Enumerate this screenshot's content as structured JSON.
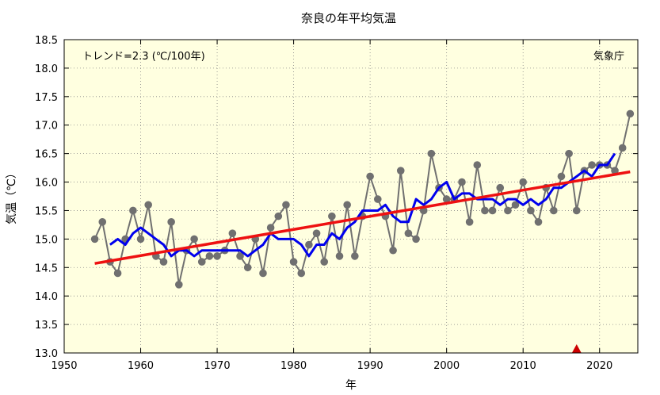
{
  "chart_data": {
    "type": "line",
    "title": "奈良の年平均気温",
    "xlabel": "年",
    "ylabel": "気温（℃）",
    "xlim": [
      1950,
      2025
    ],
    "ylim": [
      13.0,
      18.5
    ],
    "x_ticks": [
      1950,
      1960,
      1970,
      1980,
      1990,
      2000,
      2010,
      2020
    ],
    "y_ticks": [
      13.0,
      13.5,
      14.0,
      14.5,
      15.0,
      15.5,
      16.0,
      16.5,
      17.0,
      17.5,
      18.0,
      18.5
    ],
    "grid": true,
    "annotations": {
      "trend_text": "トレンド=2.3 (℃/100年)",
      "source_text": "気象庁"
    },
    "colors": {
      "background": "#ffffe0",
      "annual": "#707070",
      "moving_average": "#0000ee",
      "trend": "#ee1111",
      "marker": "#cc0000"
    },
    "series": [
      {
        "name": "",
        "kind": "annual",
        "x": [
          1954,
          1955,
          1956,
          1957,
          1958,
          1959,
          1960,
          1961,
          1962,
          1963,
          1964,
          1965,
          1966,
          1967,
          1968,
          1969,
          1970,
          1971,
          1972,
          1973,
          1974,
          1975,
          1976,
          1977,
          1978,
          1979,
          1980,
          1981,
          1982,
          1983,
          1984,
          1985,
          1986,
          1987,
          1988,
          1989,
          1990,
          1991,
          1992,
          1993,
          1994,
          1995,
          1996,
          1997,
          1998,
          1999,
          2000,
          2001,
          2002,
          2003,
          2004,
          2005,
          2006,
          2007,
          2008,
          2009,
          2010,
          2011,
          2012,
          2013,
          2014,
          2015,
          2016,
          2017,
          2018,
          2019,
          2020,
          2021,
          2022,
          2023,
          2024
        ],
        "values": [
          15.0,
          15.3,
          14.6,
          14.4,
          15.0,
          15.5,
          15.0,
          15.6,
          14.7,
          14.6,
          15.3,
          14.2,
          14.8,
          15.0,
          14.6,
          14.7,
          14.7,
          14.8,
          15.1,
          14.7,
          14.5,
          15.0,
          14.4,
          15.2,
          15.4,
          15.6,
          14.6,
          14.4,
          14.9,
          15.1,
          14.6,
          15.4,
          14.7,
          15.6,
          14.7,
          15.4,
          16.1,
          15.7,
          15.4,
          14.8,
          16.2,
          15.1,
          15.0,
          15.5,
          16.5,
          15.9,
          15.7,
          15.7,
          16.0,
          15.3,
          16.3,
          15.5,
          15.5,
          15.9,
          15.5,
          15.6,
          16.0,
          15.5,
          15.3,
          15.9,
          15.5,
          16.1,
          16.5,
          15.5,
          16.2,
          16.3,
          16.3,
          16.3,
          16.2,
          16.6,
          17.2
        ]
      },
      {
        "name": "",
        "kind": "moving_average",
        "x": [
          1956,
          1957,
          1958,
          1959,
          1960,
          1961,
          1962,
          1963,
          1964,
          1965,
          1966,
          1967,
          1968,
          1969,
          1970,
          1971,
          1972,
          1973,
          1974,
          1975,
          1976,
          1977,
          1978,
          1979,
          1980,
          1981,
          1982,
          1983,
          1984,
          1985,
          1986,
          1987,
          1988,
          1989,
          1990,
          1991,
          1992,
          1993,
          1994,
          1995,
          1996,
          1997,
          1998,
          1999,
          2000,
          2001,
          2002,
          2003,
          2004,
          2005,
          2006,
          2007,
          2008,
          2009,
          2010,
          2011,
          2012,
          2013,
          2014,
          2015,
          2016,
          2017,
          2018,
          2019,
          2020,
          2021,
          2022
        ],
        "values": [
          14.9,
          15.0,
          14.9,
          15.1,
          15.2,
          15.1,
          15.0,
          14.9,
          14.7,
          14.8,
          14.8,
          14.7,
          14.8,
          14.8,
          14.8,
          14.8,
          14.8,
          14.8,
          14.7,
          14.8,
          14.9,
          15.1,
          15.0,
          15.0,
          15.0,
          14.9,
          14.7,
          14.9,
          14.9,
          15.1,
          15.0,
          15.2,
          15.3,
          15.5,
          15.5,
          15.5,
          15.6,
          15.4,
          15.3,
          15.3,
          15.7,
          15.6,
          15.7,
          15.9,
          16.0,
          15.7,
          15.8,
          15.8,
          15.7,
          15.7,
          15.7,
          15.6,
          15.7,
          15.7,
          15.6,
          15.7,
          15.6,
          15.7,
          15.9,
          15.9,
          16.0,
          16.1,
          16.2,
          16.1,
          16.3,
          16.3,
          16.5
        ]
      },
      {
        "name": "",
        "kind": "trend",
        "x": [
          1954,
          2024
        ],
        "values": [
          14.57,
          16.18
        ]
      }
    ],
    "markers": [
      {
        "x": 2017,
        "y": 13.0,
        "shape": "triangle"
      }
    ]
  }
}
